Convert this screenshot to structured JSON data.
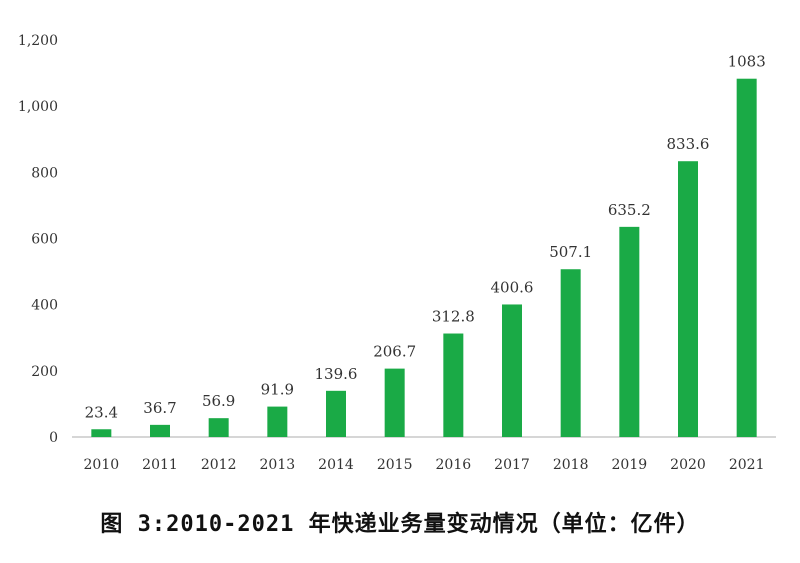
{
  "chart_data": {
    "type": "bar",
    "categories": [
      "2010",
      "2011",
      "2012",
      "2013",
      "2014",
      "2015",
      "2016",
      "2017",
      "2018",
      "2019",
      "2020",
      "2021"
    ],
    "values": [
      23.4,
      36.7,
      56.9,
      91.9,
      139.6,
      206.7,
      312.8,
      400.6,
      507.1,
      635.2,
      833.6,
      1083
    ],
    "value_labels": [
      "23.4",
      "36.7",
      "56.9",
      "91.9",
      "139.6",
      "206.7",
      "312.8",
      "400.6",
      "507.1",
      "635.2",
      "833.6",
      "1083"
    ],
    "ylim": [
      0,
      1200
    ],
    "yticks": [
      0,
      200,
      400,
      600,
      800,
      1000,
      1200
    ],
    "ytick_labels": [
      "0",
      "200",
      "400",
      "600",
      "800",
      "1,000",
      "1,200"
    ],
    "grid": false,
    "legend": "none",
    "bar_color": "#1aaa46",
    "title": "",
    "xlabel": "",
    "ylabel": ""
  },
  "caption": "图 3:2010-2021 年快递业务量变动情况（单位：亿件）"
}
